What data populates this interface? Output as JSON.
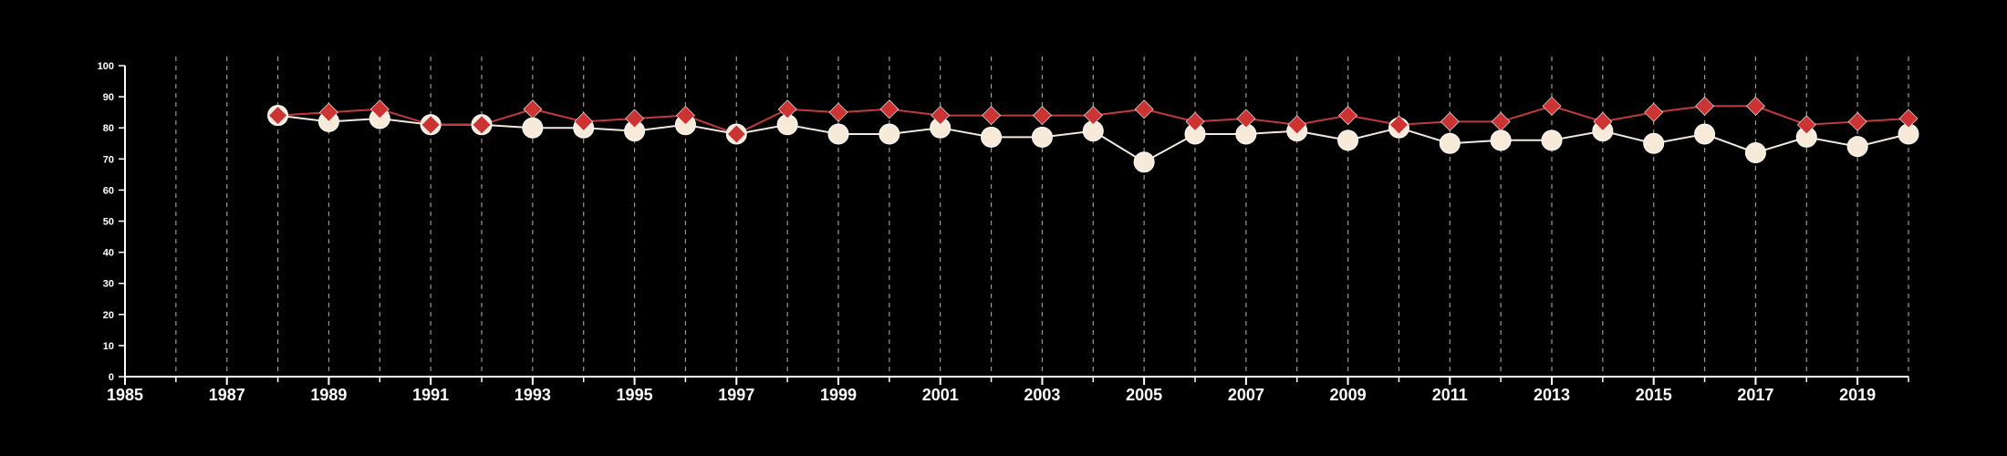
{
  "chart_data": {
    "type": "line",
    "title": "",
    "xlabel": "",
    "ylabel": "",
    "xlim": [
      1985,
      2020
    ],
    "ylim": [
      0,
      100
    ],
    "x_ticks": [
      1985,
      1987,
      1989,
      1991,
      1993,
      1995,
      1997,
      1999,
      2001,
      2003,
      2005,
      2007,
      2009,
      2011,
      2013,
      2015,
      2017,
      2019
    ],
    "y_ticks": [
      0,
      10,
      20,
      30,
      40,
      50,
      60,
      70,
      80,
      90,
      100
    ],
    "grid": "vertical dashed lines at every year",
    "legend": "none",
    "background_color": "#000000",
    "axis_color": "#ffffff",
    "grid_color": "#9a9a9a",
    "x": [
      1988,
      1989,
      1990,
      1991,
      1992,
      1993,
      1994,
      1995,
      1996,
      1997,
      1998,
      1999,
      2000,
      2001,
      2002,
      2003,
      2004,
      2005,
      2006,
      2007,
      2008,
      2009,
      2010,
      2011,
      2012,
      2013,
      2014,
      2015,
      2016,
      2017,
      2018,
      2019,
      2020
    ],
    "series": [
      {
        "marker": "circle",
        "color": "#f7ead8",
        "values": [
          84,
          82,
          83,
          81,
          81,
          80,
          80,
          79,
          81,
          78,
          81,
          78,
          78,
          80,
          77,
          77,
          79,
          69,
          78,
          78,
          79,
          76,
          80,
          75,
          76,
          76,
          79,
          75,
          78,
          72,
          77,
          74,
          78
        ]
      },
      {
        "marker": "diamond",
        "color": "#cc3333",
        "values": [
          84,
          85,
          86,
          81,
          81,
          86,
          82,
          83,
          84,
          78,
          86,
          85,
          86,
          84,
          84,
          84,
          84,
          86,
          82,
          83,
          81,
          84,
          81,
          82,
          82,
          87,
          82,
          85,
          87,
          87,
          81,
          82,
          83
        ]
      }
    ]
  }
}
